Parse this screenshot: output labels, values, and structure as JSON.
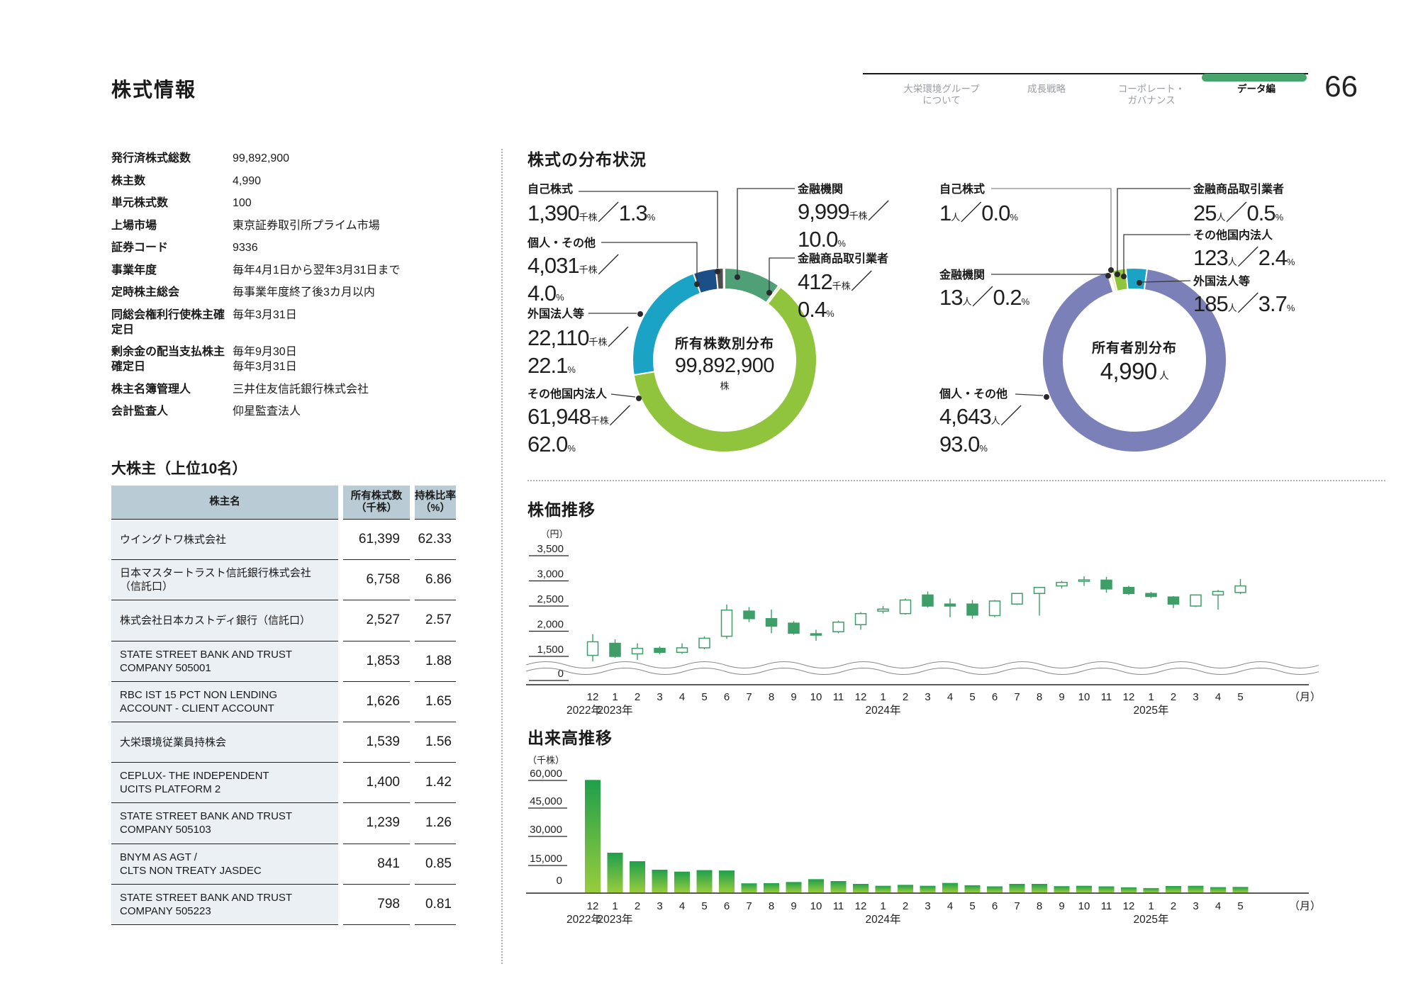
{
  "page": {
    "title": "株式情報",
    "page_number": "66"
  },
  "nav": {
    "items": [
      {
        "label": "大栄環境グループ\nについて"
      },
      {
        "label": "成長戦略"
      },
      {
        "label": "コーポレート・\nガバナンス"
      },
      {
        "label": "データ編"
      }
    ],
    "active_index": 3,
    "active_color": "#47a46c"
  },
  "info": {
    "rows": [
      {
        "label": "発行済株式総数",
        "value": "99,892,900"
      },
      {
        "label": "株主数",
        "value": "4,990"
      },
      {
        "label": "単元株式数",
        "value": "100"
      },
      {
        "label": "上場市場",
        "value": "東京証券取引所プライム市場"
      },
      {
        "label": "証券コード",
        "value": "9336"
      },
      {
        "label": "事業年度",
        "value": "毎年4月1日から翌年3月31日まで"
      },
      {
        "label": "定時株主総会",
        "value": "毎事業年度終了後3カ月以内"
      },
      {
        "label": "同総会権利行使株主確定日",
        "value": "毎年3月31日"
      },
      {
        "label": "剰余金の配当支払株主確定日",
        "value": "毎年9月30日\n毎年3月31日"
      },
      {
        "label": "株主名簿管理人",
        "value": "三井住友信託銀行株式会社"
      },
      {
        "label": "会計監査人",
        "value": "仰星監査法人"
      }
    ]
  },
  "shareholders": {
    "heading": "大株主（上位10名）",
    "columns": [
      "株主名",
      "所有株式数\n（千株）",
      "持株比率\n（%）"
    ],
    "rows": [
      {
        "name": "ウイングトワ株式会社",
        "shares": "61,399",
        "ratio": "62.33"
      },
      {
        "name": "日本マスタートラスト信託銀行株式会社\n（信託口）",
        "shares": "6,758",
        "ratio": "6.86"
      },
      {
        "name": "株式会社日本カストディ銀行（信託口）",
        "shares": "2,527",
        "ratio": "2.57"
      },
      {
        "name": "STATE STREET BANK AND TRUST\nCOMPANY 505001",
        "shares": "1,853",
        "ratio": "1.88"
      },
      {
        "name": "RBC IST 15 PCT NON LENDING\nACCOUNT - CLIENT ACCOUNT",
        "shares": "1,626",
        "ratio": "1.65"
      },
      {
        "name": "大栄環境従業員持株会",
        "shares": "1,539",
        "ratio": "1.56"
      },
      {
        "name": "CEPLUX- THE INDEPENDENT\nUCITS PLATFORM 2",
        "shares": "1,400",
        "ratio": "1.42"
      },
      {
        "name": "STATE STREET BANK AND TRUST\nCOMPANY 505103",
        "shares": "1,239",
        "ratio": "1.26"
      },
      {
        "name": "BNYM AS AGT /\nCLTS NON TREATY JASDEC",
        "shares": "841",
        "ratio": "0.85"
      },
      {
        "name": "STATE STREET BANK AND TRUST\nCOMPANY 505223",
        "shares": "798",
        "ratio": "0.81"
      }
    ]
  },
  "distribution_heading": "株式の分布状況",
  "price_heading": "株価推移",
  "volume_heading": "出来高推移",
  "chart_data": [
    {
      "type": "pie",
      "title": "所有株数別分布",
      "center": {
        "label": "所有株数別分布",
        "value": "99,892,900",
        "unit": "株"
      },
      "start_angle": 0,
      "slices": [
        {
          "label": "金融機関",
          "amount": "9,999",
          "unit": "千株",
          "pct": 10.0,
          "pct_text": "10.0",
          "color": "#4fa077"
        },
        {
          "label": "金融商品取引業者",
          "amount": "412",
          "unit": "千株",
          "pct": 0.4,
          "pct_text": "0.4",
          "color": "#ece7a9"
        },
        {
          "label": "その他国内法人",
          "amount": "61,948",
          "unit": "千株",
          "pct": 62.0,
          "pct_text": "62.0",
          "color": "#8fc43c"
        },
        {
          "label": "外国法人等",
          "amount": "22,110",
          "unit": "千株",
          "pct": 22.1,
          "pct_text": "22.1",
          "color": "#1ba3c6"
        },
        {
          "label": "個人・その他",
          "amount": "4,031",
          "unit": "千株",
          "pct": 4.0,
          "pct_text": "4.0",
          "color": "#1c4e88"
        },
        {
          "label": "自己株式",
          "amount": "1,390",
          "unit": "千株",
          "pct": 1.3,
          "pct_text": "1.3",
          "color": "#4d4d4d"
        }
      ]
    },
    {
      "type": "pie",
      "title": "所有者別分布",
      "center": {
        "label": "所有者別分布",
        "value": "4,990",
        "unit": "人"
      },
      "start_angle": -16.5,
      "slices": [
        {
          "label": "金融機関",
          "amount": "13",
          "unit": "人",
          "pct": 0.2,
          "pct_text": "0.2",
          "color": "#f0a53b"
        },
        {
          "label": "金融商品取引業者",
          "amount": "25",
          "unit": "人",
          "pct": 0.5,
          "pct_text": "0.5",
          "color": "#ece7a9"
        },
        {
          "label": "その他国内法人",
          "amount": "123",
          "unit": "人",
          "pct": 2.4,
          "pct_text": "2.4",
          "color": "#8fc43c"
        },
        {
          "label": "外国法人等",
          "amount": "185",
          "unit": "人",
          "pct": 3.7,
          "pct_text": "3.7",
          "color": "#1ba3c6"
        },
        {
          "label": "個人・その他",
          "amount": "4,643",
          "unit": "人",
          "pct": 93.0,
          "pct_text": "93.0",
          "color": "#7c80b8"
        },
        {
          "label": "自己株式",
          "amount": "1",
          "unit": "人",
          "pct": 0.0,
          "pct_text": "0.0",
          "color": "#4d4d4d"
        }
      ]
    },
    {
      "type": "candlestick",
      "title": "株価推移",
      "ylabel_unit": "（円）",
      "yticks": [
        "3,500",
        "3,000",
        "2,500",
        "2,000",
        "1,500",
        "0"
      ],
      "ylim_break": true,
      "month_axis_unit": "（月）",
      "months": [
        "12",
        "1",
        "2",
        "3",
        "4",
        "5",
        "6",
        "7",
        "8",
        "9",
        "10",
        "11",
        "12",
        "1",
        "2",
        "3",
        "4",
        "5",
        "6",
        "7",
        "8",
        "9",
        "10",
        "11",
        "12",
        "1",
        "2",
        "3",
        "4",
        "5"
      ],
      "year_marks": [
        {
          "index": 0,
          "label": "2022年"
        },
        {
          "index": 1,
          "label": "2023年"
        },
        {
          "index": 13,
          "label": "2024年"
        },
        {
          "index": 25,
          "label": "2025年"
        }
      ],
      "candle_color": "#3d9e68",
      "candles_ohlc": [
        [
          1520,
          1940,
          1400,
          1790
        ],
        [
          1760,
          1840,
          1470,
          1500
        ],
        [
          1550,
          1760,
          1430,
          1660
        ],
        [
          1660,
          1700,
          1540,
          1580
        ],
        [
          1580,
          1760,
          1550,
          1670
        ],
        [
          1670,
          1900,
          1640,
          1860
        ],
        [
          1900,
          2530,
          1850,
          2420
        ],
        [
          2400,
          2480,
          2180,
          2250
        ],
        [
          2250,
          2430,
          1960,
          2100
        ],
        [
          2160,
          2200,
          1930,
          1960
        ],
        [
          1950,
          2030,
          1810,
          1930
        ],
        [
          1990,
          2210,
          1960,
          2180
        ],
        [
          2130,
          2380,
          2030,
          2350
        ],
        [
          2400,
          2500,
          2350,
          2440
        ],
        [
          2350,
          2650,
          2330,
          2620
        ],
        [
          2720,
          2790,
          2470,
          2500
        ],
        [
          2540,
          2650,
          2280,
          2500
        ],
        [
          2540,
          2620,
          2250,
          2320
        ],
        [
          2310,
          2620,
          2280,
          2600
        ],
        [
          2540,
          2760,
          2520,
          2750
        ],
        [
          2750,
          2880,
          2310,
          2870
        ],
        [
          2900,
          3000,
          2850,
          2970
        ],
        [
          3000,
          3090,
          2900,
          3020
        ],
        [
          3015,
          3080,
          2765,
          2840
        ],
        [
          2870,
          2900,
          2720,
          2750
        ],
        [
          2750,
          2780,
          2660,
          2690
        ],
        [
          2680,
          2700,
          2460,
          2540
        ],
        [
          2500,
          2730,
          2480,
          2720
        ],
        [
          2720,
          2820,
          2430,
          2790
        ],
        [
          2770,
          3040,
          2740,
          2900
        ]
      ]
    },
    {
      "type": "bar",
      "title": "出来高推移",
      "ylabel_unit": "（千株）",
      "yticks": [
        "60,000",
        "45,000",
        "30,000",
        "15,000",
        "0"
      ],
      "month_axis_unit": "（月）",
      "months": [
        "12",
        "1",
        "2",
        "3",
        "4",
        "5",
        "6",
        "7",
        "8",
        "9",
        "10",
        "11",
        "12",
        "1",
        "2",
        "3",
        "4",
        "5",
        "6",
        "7",
        "8",
        "9",
        "10",
        "11",
        "12",
        "1",
        "2",
        "3",
        "4",
        "5"
      ],
      "year_marks": [
        {
          "index": 0,
          "label": "2022年"
        },
        {
          "index": 1,
          "label": "2023年"
        },
        {
          "index": 13,
          "label": "2024年"
        },
        {
          "index": 25,
          "label": "2025年"
        }
      ],
      "bar_gradient": [
        "#1f9f4b",
        "#99cc3e"
      ],
      "values": [
        59500,
        21000,
        16500,
        12000,
        11000,
        11800,
        11600,
        4800,
        4900,
        5500,
        7000,
        6000,
        4500,
        3500,
        4000,
        3500,
        5000,
        3800,
        3200,
        4500,
        4500,
        3300,
        3500,
        3200,
        2700,
        2300,
        3400,
        3500,
        2800,
        2900
      ]
    }
  ]
}
